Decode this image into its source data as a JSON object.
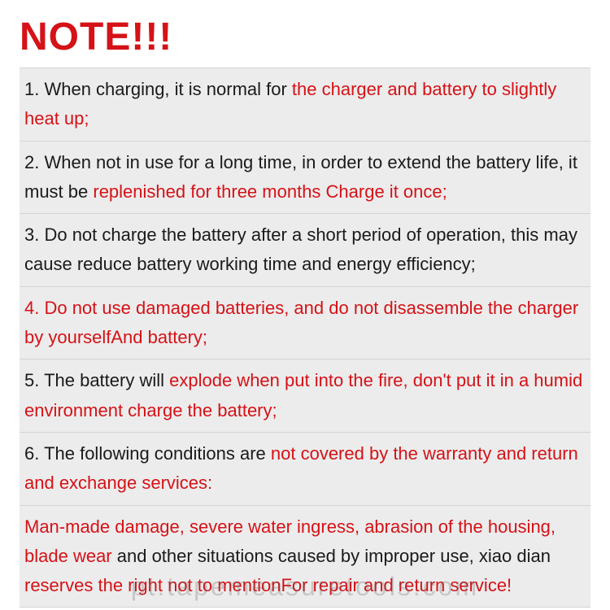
{
  "colors": {
    "red": "#d51217",
    "black": "#1a1a1a",
    "row_bg": "#ececec",
    "row_border": "#d4d4d4",
    "page_bg": "#ffffff",
    "watermark": "rgba(100,100,100,0.28)"
  },
  "typography": {
    "heading_fontsize": 48,
    "body_fontsize": 22,
    "line_height": 1.65,
    "font_family": "Arial, Helvetica, sans-serif"
  },
  "heading": "NOTE!!!",
  "items": [
    {
      "segments": [
        {
          "text": "1. When charging, it is normal for ",
          "color": "black"
        },
        {
          "text": "the charger and battery to slightly heat up;",
          "color": "red"
        }
      ]
    },
    {
      "segments": [
        {
          "text": "2. When not in use for a long time, in order to extend the battery life, it must be ",
          "color": "black"
        },
        {
          "text": "replenished for three months Charge it once;",
          "color": "red"
        }
      ]
    },
    {
      "segments": [
        {
          "text": "3. Do not charge the battery after a short period of operation, this may cause reduce battery working time and energy efficiency;",
          "color": "black"
        }
      ]
    },
    {
      "segments": [
        {
          "text": "4. Do not use damaged batteries, and do not disassemble the charger by yourselfAnd battery;",
          "color": "red"
        }
      ]
    },
    {
      "segments": [
        {
          "text": "5. The battery will ",
          "color": "black"
        },
        {
          "text": "explode when put into the fire, don't put it in a humid environment charge the battery;",
          "color": "red"
        }
      ]
    },
    {
      "segments": [
        {
          "text": "6. The following conditions are ",
          "color": "black"
        },
        {
          "text": "not covered by the warranty and return and exchange services:",
          "color": "red"
        }
      ]
    },
    {
      "segments": [
        {
          "text": "Man-made damage, severe water ingress, abrasion of the housing, blade wear",
          "color": "red"
        },
        {
          "text": " and other situations caused by improper use, xiao dian ",
          "color": "black"
        },
        {
          "text": "reserves the right not to mentionFor repair and return service!",
          "color": "red"
        }
      ]
    }
  ],
  "watermark": "pt.tapemeasuretools.com"
}
